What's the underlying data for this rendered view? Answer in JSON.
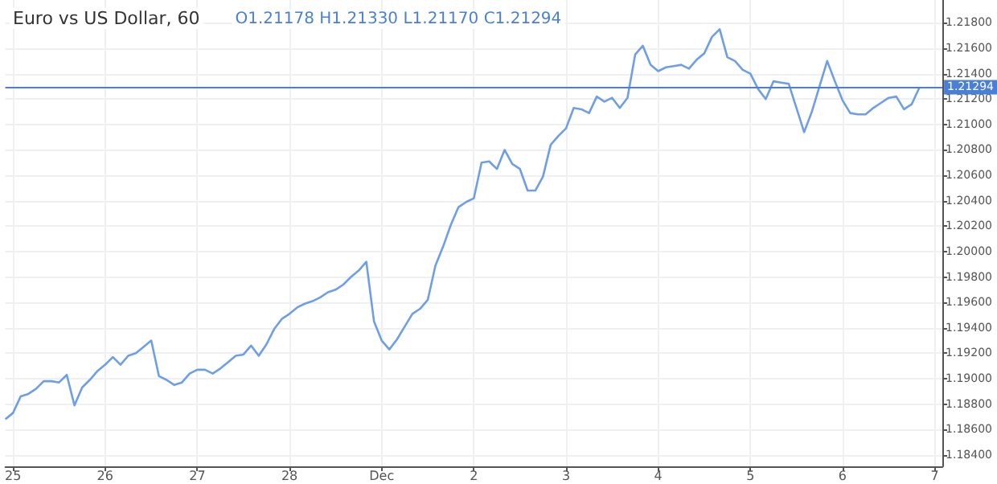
{
  "chart_data": {
    "type": "line",
    "title": "Euro vs US Dollar, 60",
    "annotations": [
      "O1.21178 H1.21330 L1.21170 C1.21294"
    ],
    "categories": [
      null,
      "25",
      null,
      null,
      null,
      null,
      null,
      null,
      null,
      null,
      null,
      null,
      null,
      "26",
      null,
      null,
      null,
      null,
      null,
      null,
      null,
      null,
      null,
      null,
      null,
      "27",
      null,
      null,
      null,
      null,
      null,
      null,
      null,
      null,
      null,
      null,
      null,
      "28",
      null,
      null,
      null,
      null,
      null,
      null,
      null,
      null,
      null,
      null,
      null,
      "Dec",
      null,
      null,
      null,
      null,
      null,
      null,
      null,
      null,
      null,
      null,
      null,
      "2",
      null,
      null,
      null,
      null,
      null,
      null,
      null,
      null,
      null,
      null,
      null,
      "3",
      null,
      null,
      null,
      null,
      null,
      null,
      null,
      null,
      null,
      null,
      null,
      "4",
      null,
      null,
      null,
      null,
      null,
      null,
      null,
      null,
      null,
      null,
      null,
      "5",
      null,
      null,
      null,
      null,
      null,
      null,
      null,
      null,
      null,
      null,
      null,
      "6",
      null,
      null,
      null,
      null,
      null,
      null,
      null,
      null,
      null,
      null,
      null,
      "7",
      null
    ],
    "series": [
      {
        "color": "#6f9ee8",
        "values": [
          1.1868,
          1.1873,
          1.1886,
          1.1888,
          1.1892,
          1.1898,
          1.1898,
          1.1897,
          1.1903,
          1.1879,
          1.1893,
          1.1899,
          1.1906,
          1.1911,
          1.1917,
          1.1911,
          1.1918,
          1.192,
          1.1925,
          1.193,
          1.1902,
          1.1899,
          1.1895,
          1.1897,
          1.1904,
          1.1907,
          1.1907,
          1.1904,
          1.1908,
          1.1913,
          1.1918,
          1.1919,
          1.1926,
          1.1918,
          1.1927,
          1.1939,
          1.1947,
          1.1951,
          1.1956,
          1.1959,
          1.1961,
          1.1964,
          1.1968,
          1.197,
          1.1974,
          1.198,
          1.1985,
          1.1992,
          1.1945,
          1.193,
          1.1923,
          1.1931,
          1.1941,
          1.1951,
          1.1955,
          1.1962,
          1.1989,
          1.2004,
          1.2021,
          1.2035,
          1.2039,
          1.2042,
          1.207,
          1.2071,
          1.2065,
          1.208,
          1.2069,
          1.2065,
          1.2048,
          1.2048,
          1.2059,
          1.2084,
          1.2091,
          1.2097,
          1.2113,
          1.2112,
          1.2109,
          1.2122,
          1.2118,
          1.2121,
          1.2113,
          1.2121,
          1.2155,
          1.2162,
          1.2147,
          1.2142,
          1.2145,
          1.2146,
          1.2147,
          1.2144,
          1.2151,
          1.2156,
          1.2169,
          1.2175,
          1.2153,
          1.215,
          1.2143,
          1.214,
          1.2128,
          1.212,
          1.2134,
          1.2133,
          1.2132,
          1.2113,
          1.2094,
          1.211,
          1.213,
          1.215,
          1.2134,
          1.2119,
          1.2109,
          1.2108,
          1.2108,
          1.2113,
          1.2117,
          1.2121,
          1.2122,
          1.2112,
          1.2116,
          1.2129,
          null,
          null,
          null
        ]
      }
    ],
    "ylim": [
      1.1831,
      1.2198
    ],
    "yticks": [
      {
        "value": 1.184,
        "label": "1.18400"
      },
      {
        "value": 1.186,
        "label": "1.18600"
      },
      {
        "value": 1.188,
        "label": "1.18800"
      },
      {
        "value": 1.19,
        "label": "1.19000"
      },
      {
        "value": 1.192,
        "label": "1.19200"
      },
      {
        "value": 1.194,
        "label": "1.19400"
      },
      {
        "value": 1.196,
        "label": "1.19600"
      },
      {
        "value": 1.198,
        "label": "1.19800"
      },
      {
        "value": 1.2,
        "label": "1.20000"
      },
      {
        "value": 1.202,
        "label": "1.20200"
      },
      {
        "value": 1.204,
        "label": "1.20400"
      },
      {
        "value": 1.206,
        "label": "1.20600"
      },
      {
        "value": 1.208,
        "label": "1.20800"
      },
      {
        "value": 1.21,
        "label": "1.21000"
      },
      {
        "value": 1.212,
        "label": "1.21200"
      },
      {
        "value": 1.214,
        "label": "1.21400"
      },
      {
        "value": 1.216,
        "label": "1.21600"
      },
      {
        "value": 1.218,
        "label": "1.21800"
      }
    ],
    "ref_lines": [
      {
        "axis": "y",
        "value": 1.21294,
        "label": "1.21294",
        "color": "#4a7fd6"
      }
    ],
    "grid": true,
    "marker": "none",
    "line_style": "solid"
  }
}
